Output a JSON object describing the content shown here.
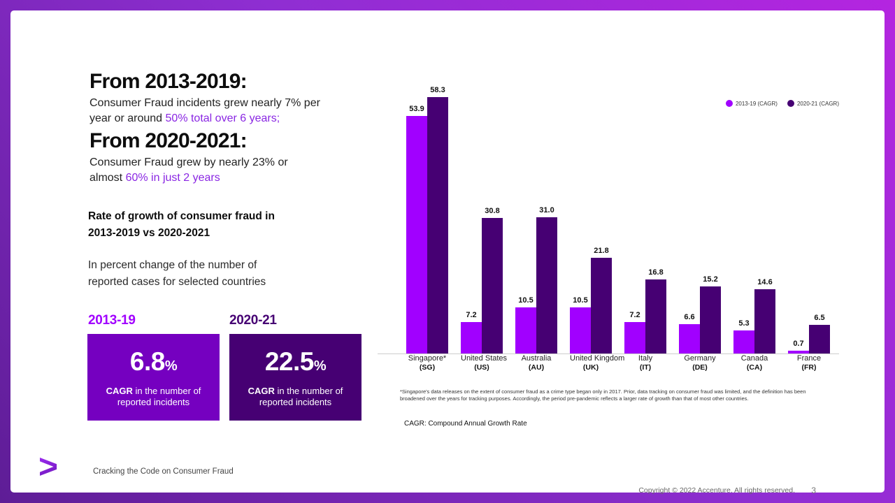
{
  "intro": {
    "heading1": "From 2013-2019:",
    "para1_black": "Consumer Fraud incidents grew nearly 7% per year or around ",
    "para1_purple": "50% total over 6 years;",
    "heading2": "From 2020-2021:",
    "para2_black": "Consumer Fraud grew by nearly 23% or almost ",
    "para2_purple": "60% in just 2 years"
  },
  "summary": {
    "subtitle": "Rate of growth of consumer fraud in 2013-2019 vs 2020-2021",
    "description": "In percent change of the number of reported cases for selected countries"
  },
  "stat_cards": [
    {
      "period": "2013-19",
      "period_color": "#a100ff",
      "value": "6.8",
      "unit": "%",
      "caption_bold": "CAGR",
      "caption_rest": " in the number of reported incidents",
      "bg": "#7500c0"
    },
    {
      "period": "2020-21",
      "period_color": "#460073",
      "value": "22.5",
      "unit": "%",
      "caption_bold": "CAGR",
      "caption_rest": " in the number of reported incidents",
      "bg": "#460073"
    }
  ],
  "chart_data": {
    "type": "bar",
    "categories": [
      {
        "name": "Singapore*",
        "code": "(SG)"
      },
      {
        "name": "United States",
        "code": "(US)"
      },
      {
        "name": "Australia",
        "code": "(AU)"
      },
      {
        "name": "United Kingdom",
        "code": "(UK)"
      },
      {
        "name": "Italy",
        "code": "(IT)"
      },
      {
        "name": "Germany",
        "code": "(DE)"
      },
      {
        "name": "Canada",
        "code": "(CA)"
      },
      {
        "name": "France",
        "code": "(FR)"
      }
    ],
    "series": [
      {
        "name": "2013-19 (CAGR)",
        "color": "#a100ff",
        "values": [
          53.9,
          7.2,
          10.5,
          10.5,
          7.2,
          6.6,
          5.3,
          0.7
        ],
        "labels": [
          "53.9",
          "7.2",
          "10.5",
          "10.5",
          "7.2",
          "6.6",
          "5.3",
          "0.7"
        ]
      },
      {
        "name": "2020-21 (CAGR)",
        "color": "#460073",
        "values": [
          58.3,
          30.8,
          31.0,
          21.8,
          16.8,
          15.2,
          14.6,
          6.5
        ],
        "labels": [
          "58.3",
          "30.8",
          "31.0",
          "21.8",
          "16.8",
          "15.2",
          "14.6",
          "6.5"
        ]
      }
    ],
    "ylim": [
      0,
      60
    ],
    "grid": false,
    "legend_position": "top-right",
    "footnote": "*Singapore's data releases on the extent of consumer fraud as a crime type began only in 2017. Prior, data tracking on consumer fraud was limited, and the definition has been broadened over the years for tracking purposes. Accordingly, the period pre-pandemic reflects a larger rate of growth than that of most other countries.",
    "note": "CAGR: Compound Annual Growth Rate"
  },
  "footer": {
    "logo_glyph": ">",
    "title": "Cracking the Code on Consumer Fraud",
    "copyright": "Copyright © 2022 Accenture. All rights reserved.",
    "page_number": "3"
  }
}
